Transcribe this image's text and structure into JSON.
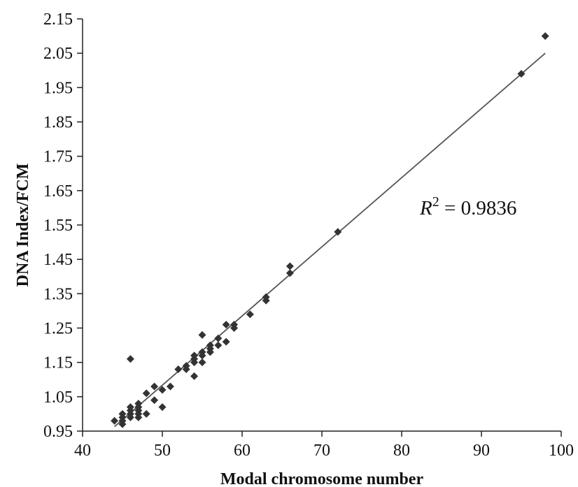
{
  "chart_data": {
    "type": "scatter",
    "xlabel": "Modal chromosome number",
    "ylabel": "DNA Index/FCM",
    "xlim": [
      40,
      100
    ],
    "ylim": [
      0.95,
      2.15
    ],
    "xticks": [
      "40",
      "50",
      "60",
      "70",
      "80",
      "90",
      "100"
    ],
    "yticks": [
      "0.95",
      "1.05",
      "1.15",
      "1.25",
      "1.35",
      "1.45",
      "1.55",
      "1.65",
      "1.75",
      "1.85",
      "1.95",
      "2.05",
      "2.15"
    ],
    "grid": false,
    "marker": "diamond",
    "marker_color": "#333333",
    "line_color": "#555555",
    "annotation": {
      "r_symbol": "R",
      "exponent": "2",
      "rest": " = 0.9836"
    },
    "trendline": {
      "x": [
        44,
        98
      ],
      "y": [
        0.963,
        2.05
      ]
    },
    "points": [
      {
        "x": 44,
        "y": 0.98
      },
      {
        "x": 45,
        "y": 0.99
      },
      {
        "x": 45,
        "y": 0.98
      },
      {
        "x": 45,
        "y": 1.0
      },
      {
        "x": 45,
        "y": 0.97
      },
      {
        "x": 46,
        "y": 1.0
      },
      {
        "x": 46,
        "y": 1.01
      },
      {
        "x": 46,
        "y": 0.99
      },
      {
        "x": 46,
        "y": 1.02
      },
      {
        "x": 46,
        "y": 1.16
      },
      {
        "x": 47,
        "y": 1.0
      },
      {
        "x": 47,
        "y": 1.01
      },
      {
        "x": 47,
        "y": 1.02
      },
      {
        "x": 47,
        "y": 1.03
      },
      {
        "x": 47,
        "y": 0.99
      },
      {
        "x": 48,
        "y": 1.06
      },
      {
        "x": 48,
        "y": 1.0
      },
      {
        "x": 49,
        "y": 1.04
      },
      {
        "x": 49,
        "y": 1.08
      },
      {
        "x": 50,
        "y": 1.07
      },
      {
        "x": 50,
        "y": 1.02
      },
      {
        "x": 51,
        "y": 1.08
      },
      {
        "x": 52,
        "y": 1.13
      },
      {
        "x": 53,
        "y": 1.13
      },
      {
        "x": 53,
        "y": 1.14
      },
      {
        "x": 54,
        "y": 1.11
      },
      {
        "x": 54,
        "y": 1.15
      },
      {
        "x": 54,
        "y": 1.16
      },
      {
        "x": 54,
        "y": 1.17
      },
      {
        "x": 55,
        "y": 1.15
      },
      {
        "x": 55,
        "y": 1.17
      },
      {
        "x": 55,
        "y": 1.18
      },
      {
        "x": 55,
        "y": 1.23
      },
      {
        "x": 56,
        "y": 1.18
      },
      {
        "x": 56,
        "y": 1.19
      },
      {
        "x": 56,
        "y": 1.2
      },
      {
        "x": 57,
        "y": 1.2
      },
      {
        "x": 57,
        "y": 1.22
      },
      {
        "x": 58,
        "y": 1.21
      },
      {
        "x": 58,
        "y": 1.26
      },
      {
        "x": 59,
        "y": 1.25
      },
      {
        "x": 59,
        "y": 1.26
      },
      {
        "x": 61,
        "y": 1.29
      },
      {
        "x": 63,
        "y": 1.33
      },
      {
        "x": 63,
        "y": 1.34
      },
      {
        "x": 66,
        "y": 1.41
      },
      {
        "x": 66,
        "y": 1.43
      },
      {
        "x": 72,
        "y": 1.53
      },
      {
        "x": 95,
        "y": 1.99
      },
      {
        "x": 98,
        "y": 2.1
      }
    ]
  }
}
